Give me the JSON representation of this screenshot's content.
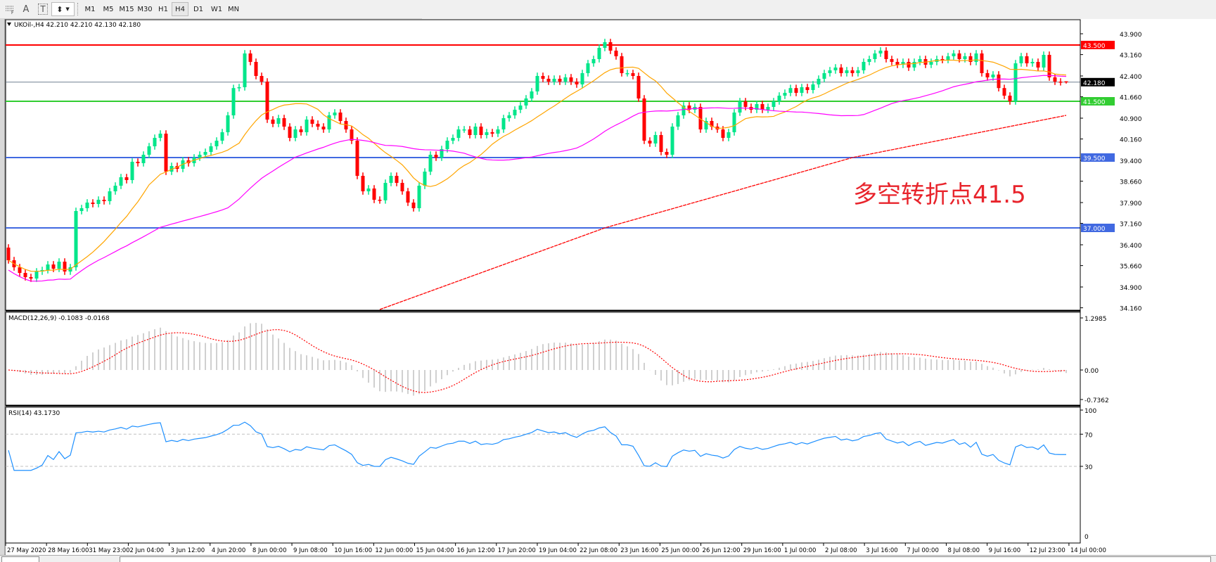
{
  "toolbar": {
    "tools": [
      {
        "icon": "fibonacci-fan-icon",
        "label": ""
      },
      {
        "icon": "text-icon",
        "label": "A"
      },
      {
        "icon": "text-label-icon",
        "label": "T"
      },
      {
        "icon": "arrows-dropdown-icon",
        "label": ""
      }
    ],
    "timeframes": [
      "M1",
      "M5",
      "M15",
      "M30",
      "H1",
      "H4",
      "D1",
      "W1",
      "MN"
    ],
    "active_timeframe": "H4"
  },
  "chart_data": {
    "type": "candlestick",
    "title": "UKOil-,H4  42.210 42.210 42.130 42.180",
    "symbol": "UKOil-",
    "timeframe": "H4",
    "last_bar": {
      "open": 42.21,
      "high": 42.21,
      "low": 42.13,
      "close": 42.18
    },
    "ylim": [
      34.16,
      44.25
    ],
    "y_ticks": [
      "43.900",
      "43.160",
      "42.400",
      "41.660",
      "40.900",
      "40.160",
      "39.400",
      "38.660",
      "37.900",
      "37.160",
      "36.400",
      "35.660",
      "34.900",
      "34.160"
    ],
    "x_ticks": [
      "27 May 2020",
      "28 May 16:00",
      "31 May 23:00",
      "2 Jun 04:00",
      "3 Jun 12:00",
      "4 Jun 20:00",
      "8 Jun 00:00",
      "9 Jun 08:00",
      "10 Jun 16:00",
      "12 Jun 00:00",
      "15 Jun 04:00",
      "16 Jun 12:00",
      "17 Jun 20:00",
      "19 Jun 04:00",
      "22 Jun 08:00",
      "23 Jun 16:00",
      "25 Jun 00:00",
      "26 Jun 12:00",
      "29 Jun 16:00",
      "1 Jul 00:00",
      "2 Jul 08:00",
      "3 Jul 16:00",
      "7 Jul 00:00",
      "8 Jul 08:00",
      "9 Jul 16:00",
      "12 Jul 23:00",
      "14 Jul 00:00"
    ],
    "closes": [
      35.85,
      35.6,
      35.4,
      35.25,
      35.2,
      35.45,
      35.5,
      35.7,
      35.55,
      35.8,
      35.45,
      35.6,
      37.6,
      37.7,
      37.9,
      37.85,
      38.0,
      37.95,
      38.3,
      38.5,
      38.8,
      38.7,
      39.35,
      39.3,
      39.6,
      39.9,
      40.2,
      40.35,
      39.0,
      39.2,
      39.1,
      39.4,
      39.3,
      39.5,
      39.6,
      39.7,
      39.9,
      40.1,
      40.4,
      41.0,
      41.97,
      42.0,
      43.2,
      42.9,
      42.4,
      42.2,
      40.85,
      40.7,
      40.9,
      40.6,
      40.2,
      40.5,
      40.4,
      40.85,
      40.7,
      40.6,
      40.5,
      41.0,
      41.1,
      40.8,
      40.5,
      40.1,
      38.85,
      38.3,
      38.4,
      38.0,
      37.98,
      38.6,
      38.85,
      38.6,
      38.3,
      37.9,
      37.7,
      38.5,
      39.0,
      39.6,
      39.5,
      39.8,
      40.1,
      40.2,
      40.5,
      40.5,
      40.3,
      40.6,
      40.3,
      40.4,
      40.35,
      40.5,
      40.9,
      41.0,
      41.2,
      41.35,
      41.6,
      41.85,
      42.4,
      42.3,
      42.2,
      42.3,
      42.2,
      42.35,
      42.2,
      42.1,
      42.5,
      42.85,
      43.0,
      43.4,
      43.6,
      43.3,
      43.1,
      42.5,
      42.5,
      42.4,
      41.6,
      40.1,
      40.0,
      40.3,
      39.7,
      39.6,
      40.6,
      41.0,
      41.35,
      41.2,
      41.3,
      40.5,
      40.8,
      40.6,
      40.5,
      40.2,
      40.4,
      41.1,
      41.5,
      41.3,
      41.2,
      41.4,
      41.2,
      41.3,
      41.5,
      41.7,
      41.8,
      41.97,
      41.8,
      42.0,
      41.9,
      42.1,
      42.3,
      42.5,
      42.6,
      42.7,
      42.5,
      42.6,
      42.5,
      42.6,
      42.9,
      43.0,
      43.2,
      43.3,
      43.0,
      42.9,
      42.8,
      42.9,
      42.7,
      42.9,
      43.0,
      42.8,
      42.9,
      43.0,
      42.97,
      43.1,
      43.2,
      43.0,
      43.1,
      42.9,
      43.2,
      42.5,
      42.35,
      42.45,
      41.97,
      41.7,
      41.5,
      42.85,
      43.1,
      42.85,
      42.9,
      42.7,
      43.15,
      42.35,
      42.2,
      42.18,
      42.18
    ],
    "first_open": 36.3,
    "slow_ma_points": [
      {
        "bar": 66,
        "value": 34.1
      },
      {
        "bar": 106,
        "value": 37.0
      },
      {
        "bar": 150,
        "value": 39.5
      },
      {
        "bar": 188,
        "value": 41.0
      }
    ],
    "levels": [
      {
        "label": "43.500",
        "value": 43.5,
        "color": "#ff0000"
      },
      {
        "label": "41.500",
        "value": 41.5,
        "color": "#32cd32"
      },
      {
        "label": "39.500",
        "value": 39.5,
        "color": "#4169e1"
      },
      {
        "label": "37.000",
        "value": 37.0,
        "color": "#4169e1"
      }
    ],
    "current_price": {
      "label": "42.180",
      "value": 42.18
    },
    "annotation": "多空转折点41.5",
    "colors": {
      "bull": "#00e68a",
      "bear": "#ff0000",
      "fast_ma": "#ffa500",
      "mid_ma": "#ff00ff",
      "slow_ma": "#ff0000",
      "annotation": "#e8242c",
      "macd_hist": "#c0c0c0",
      "macd_signal": "#ff0000",
      "rsi": "#1e90ff"
    },
    "macd": {
      "label": "MACD(12,26,9) -0.1083 -0.0168",
      "y_ticks": [
        "1.2985",
        "0.00",
        "-0.7362"
      ],
      "ylim": [
        -0.7362,
        1.2985
      ]
    },
    "rsi": {
      "label": "RSI(14) 43.1730",
      "y_ticks": [
        "100",
        "70",
        "30"
      ],
      "levels": [
        70,
        30
      ],
      "bottom_label": "0"
    }
  }
}
